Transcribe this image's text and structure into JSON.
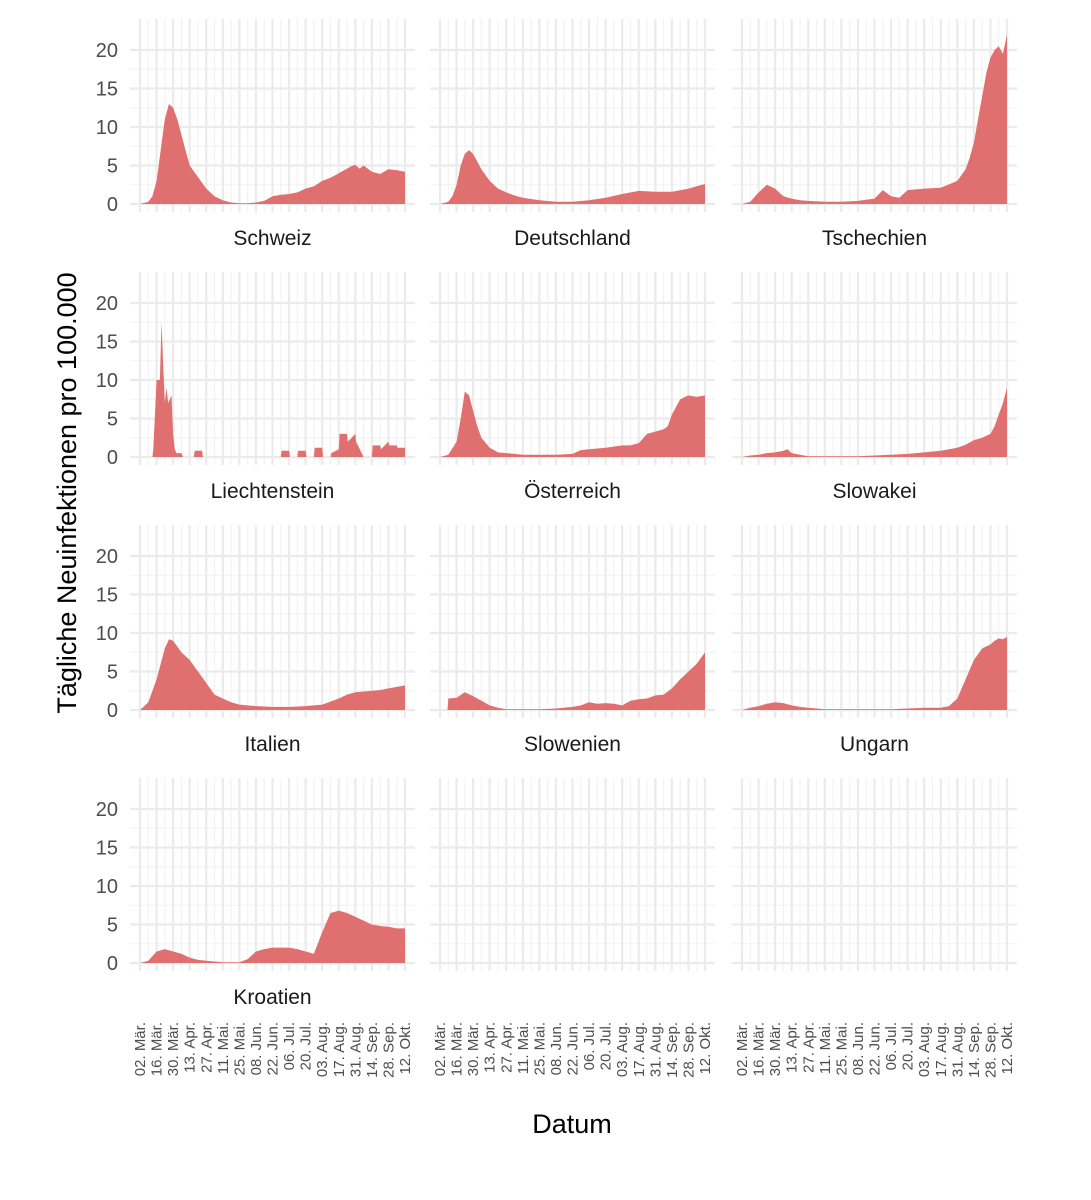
{
  "chart_data": {
    "type": "area",
    "layout": "facet grid 4 rows x 3 columns (ggplot2 minimal theme)",
    "ylabel": "Tägliche Neuinfektionen pro 100.000",
    "xlabel": "Datum",
    "ylim": [
      0,
      22
    ],
    "y_ticks": [
      "0",
      "5",
      "10",
      "15",
      "20"
    ],
    "x_ticks": [
      "02. Mär.",
      "16. Mär.",
      "30. Mär.",
      "13. Apr.",
      "27. Apr.",
      "11. Mai.",
      "25. Mai.",
      "08. Jun.",
      "22. Jun.",
      "06. Jul.",
      "20. Jul.",
      "03. Aug.",
      "17. Aug.",
      "31. Aug.",
      "14. Sep.",
      "28. Sep.",
      "12. Okt."
    ],
    "x_range_weeks": [
      0,
      32
    ],
    "fill_color": "#e07070",
    "series": [
      {
        "name": "Schweiz",
        "x": [
          0,
          1,
          1.5,
          2,
          2.5,
          3,
          3.5,
          4,
          4.5,
          5,
          5.5,
          6,
          7,
          8,
          9,
          10,
          11,
          12,
          13,
          14,
          15,
          16,
          17,
          18,
          19,
          20,
          21,
          22,
          23,
          24,
          24.5,
          25,
          25.5,
          26,
          26.5,
          27,
          27.5,
          28,
          29,
          30,
          31,
          32
        ],
        "y": [
          0,
          0.3,
          1,
          3,
          7,
          11,
          13,
          12.5,
          11,
          9,
          7,
          5,
          3.5,
          2,
          1,
          0.5,
          0.2,
          0.1,
          0.1,
          0.2,
          0.4,
          1,
          1.2,
          1.3,
          1.5,
          2,
          2.3,
          3,
          3.4,
          4,
          4.3,
          4.6,
          4.9,
          5.1,
          4.6,
          5,
          4.6,
          4.2,
          3.9,
          4.5,
          4.4,
          4.2
        ]
      },
      {
        "name": "Deutschland",
        "x": [
          0,
          1,
          1.5,
          2,
          2.5,
          3,
          3.5,
          4,
          5,
          6,
          7,
          8,
          9,
          10,
          12,
          14,
          16,
          18,
          20,
          22,
          24,
          26,
          28,
          30,
          31,
          32
        ],
        "y": [
          0,
          0.3,
          1,
          2.5,
          5,
          6.5,
          7,
          6.5,
          4.5,
          3,
          2,
          1.5,
          1.1,
          0.8,
          0.5,
          0.3,
          0.3,
          0.5,
          0.8,
          1.3,
          1.7,
          1.6,
          1.6,
          2,
          2.3,
          2.6
        ]
      },
      {
        "name": "Tschechien",
        "x": [
          0,
          1,
          2,
          3,
          4,
          5,
          6,
          7,
          8,
          10,
          12,
          14,
          16,
          17,
          18,
          19,
          20,
          22,
          24,
          26,
          27,
          27.5,
          28,
          28.5,
          29,
          29.5,
          30,
          30.5,
          31,
          31.5,
          32
        ],
        "y": [
          0,
          0.3,
          1.5,
          2.5,
          2,
          1,
          0.7,
          0.5,
          0.4,
          0.3,
          0.3,
          0.4,
          0.7,
          1.8,
          1,
          0.8,
          1.8,
          2,
          2.1,
          3,
          4.5,
          6,
          8,
          11,
          14,
          17,
          19,
          20,
          20.5,
          19.5,
          22
        ]
      },
      {
        "name": "Liechtenstein",
        "x": [
          0,
          1.5,
          1.6,
          2,
          2.4,
          2.6,
          2.8,
          3,
          3.2,
          3.4,
          3.6,
          3.8,
          4,
          4.2,
          4.4,
          4.6,
          4.8,
          5,
          5.2,
          6.5,
          6.6,
          7.5,
          7.6,
          17,
          17.1,
          18,
          18.1,
          19,
          19.1,
          20,
          20.1,
          21,
          21.1,
          22,
          22.1,
          23,
          23.1,
          24,
          24.1,
          25,
          25.1,
          26,
          26.1,
          27,
          27.1,
          28,
          28.1,
          29,
          29.1,
          30,
          30.1,
          31,
          31.1,
          32
        ],
        "y": [
          0,
          0,
          1,
          10,
          10,
          17.5,
          12,
          7,
          9,
          7,
          7.5,
          8,
          3,
          1,
          0.5,
          0.5,
          0.5,
          0.5,
          0,
          0,
          0.8,
          0.8,
          0,
          0,
          0.8,
          0.8,
          0,
          0,
          0.8,
          0.8,
          0,
          0,
          1.2,
          1.2,
          0,
          0,
          0.5,
          1,
          3,
          3,
          2,
          3,
          2,
          0,
          0,
          0,
          1.5,
          1.5,
          1,
          2,
          1.5,
          1.5,
          1.2,
          1.2
        ]
      },
      {
        "name": "Österreich",
        "x": [
          0,
          1,
          2,
          2.5,
          3,
          3.5,
          4,
          4.5,
          5,
          6,
          7,
          8,
          9,
          10,
          12,
          14,
          16,
          17,
          18,
          20,
          22,
          23,
          24,
          25,
          26,
          27,
          27.5,
          28,
          29,
          30,
          31,
          32
        ],
        "y": [
          0,
          0.3,
          2,
          5,
          8.5,
          8,
          6,
          4,
          2.5,
          1.2,
          0.6,
          0.5,
          0.4,
          0.3,
          0.3,
          0.3,
          0.4,
          0.9,
          1,
          1.2,
          1.5,
          1.5,
          1.8,
          3,
          3.3,
          3.6,
          4,
          5.5,
          7.5,
          8,
          7.8,
          8
        ]
      },
      {
        "name": "Slowakei",
        "x": [
          0,
          1,
          2,
          3,
          4,
          5,
          5.5,
          6,
          7,
          8,
          10,
          12,
          14,
          16,
          18,
          20,
          22,
          24,
          26,
          27,
          28,
          29,
          30,
          30.5,
          31,
          31.5,
          32
        ],
        "y": [
          0,
          0.2,
          0.3,
          0.5,
          0.6,
          0.8,
          1,
          0.5,
          0.3,
          0.1,
          0.1,
          0.1,
          0.1,
          0.2,
          0.3,
          0.4,
          0.6,
          0.8,
          1.2,
          1.6,
          2.2,
          2.5,
          3,
          4,
          5.5,
          7,
          9
        ]
      },
      {
        "name": "Italien",
        "x": [
          0,
          1,
          2,
          3,
          3.5,
          4,
          5,
          6,
          7,
          8,
          9,
          10,
          11,
          12,
          14,
          16,
          18,
          20,
          22,
          24,
          25,
          26,
          27,
          28,
          29,
          30,
          31,
          32
        ],
        "y": [
          0,
          1,
          4,
          8,
          9.2,
          9,
          7.5,
          6.5,
          5,
          3.5,
          2,
          1.5,
          1,
          0.7,
          0.5,
          0.4,
          0.4,
          0.5,
          0.7,
          1.5,
          2,
          2.3,
          2.4,
          2.5,
          2.6,
          2.8,
          3,
          3.2
        ]
      },
      {
        "name": "Slowenien",
        "x": [
          0,
          0.9,
          1,
          2,
          3,
          4,
          5,
          6,
          7,
          8,
          10,
          12,
          14,
          16,
          17,
          18,
          19,
          20,
          21,
          22,
          23,
          24,
          25,
          26,
          27,
          28,
          29,
          30,
          31,
          32
        ],
        "y": [
          0,
          0,
          1.5,
          1.6,
          2.3,
          1.8,
          1.2,
          0.6,
          0.3,
          0.1,
          0.1,
          0.1,
          0.2,
          0.4,
          0.6,
          1,
          0.8,
          0.9,
          0.8,
          0.6,
          1.2,
          1.4,
          1.5,
          1.9,
          2,
          2.8,
          4,
          5,
          6,
          7.5
        ]
      },
      {
        "name": "Ungarn",
        "x": [
          0,
          1,
          2,
          3,
          4,
          5,
          6,
          7,
          8,
          10,
          12,
          14,
          16,
          18,
          20,
          22,
          24,
          25,
          26,
          27,
          28,
          29,
          30,
          30.5,
          31,
          31.5,
          32
        ],
        "y": [
          0,
          0.3,
          0.5,
          0.8,
          1,
          0.9,
          0.6,
          0.4,
          0.3,
          0.1,
          0.1,
          0.1,
          0.1,
          0.1,
          0.2,
          0.3,
          0.3,
          0.5,
          1.5,
          4,
          6.5,
          8,
          8.5,
          9,
          9.3,
          9.2,
          9.5
        ]
      },
      {
        "name": "Kroatien",
        "x": [
          0,
          1,
          2,
          3,
          4,
          5,
          6,
          7,
          8,
          9,
          10,
          11,
          12,
          13,
          14,
          15,
          16,
          17,
          18,
          19,
          20,
          21,
          22,
          23,
          24,
          25,
          26,
          27,
          28,
          29,
          30,
          31,
          32
        ],
        "y": [
          0,
          0.3,
          1.5,
          1.8,
          1.5,
          1.2,
          0.7,
          0.4,
          0.3,
          0.2,
          0.1,
          0.1,
          0.1,
          0.5,
          1.5,
          1.8,
          2,
          2,
          2,
          1.8,
          1.5,
          1.2,
          4,
          6.5,
          6.8,
          6.5,
          6,
          5.5,
          5,
          4.8,
          4.7,
          4.5,
          4.5
        ]
      }
    ]
  }
}
